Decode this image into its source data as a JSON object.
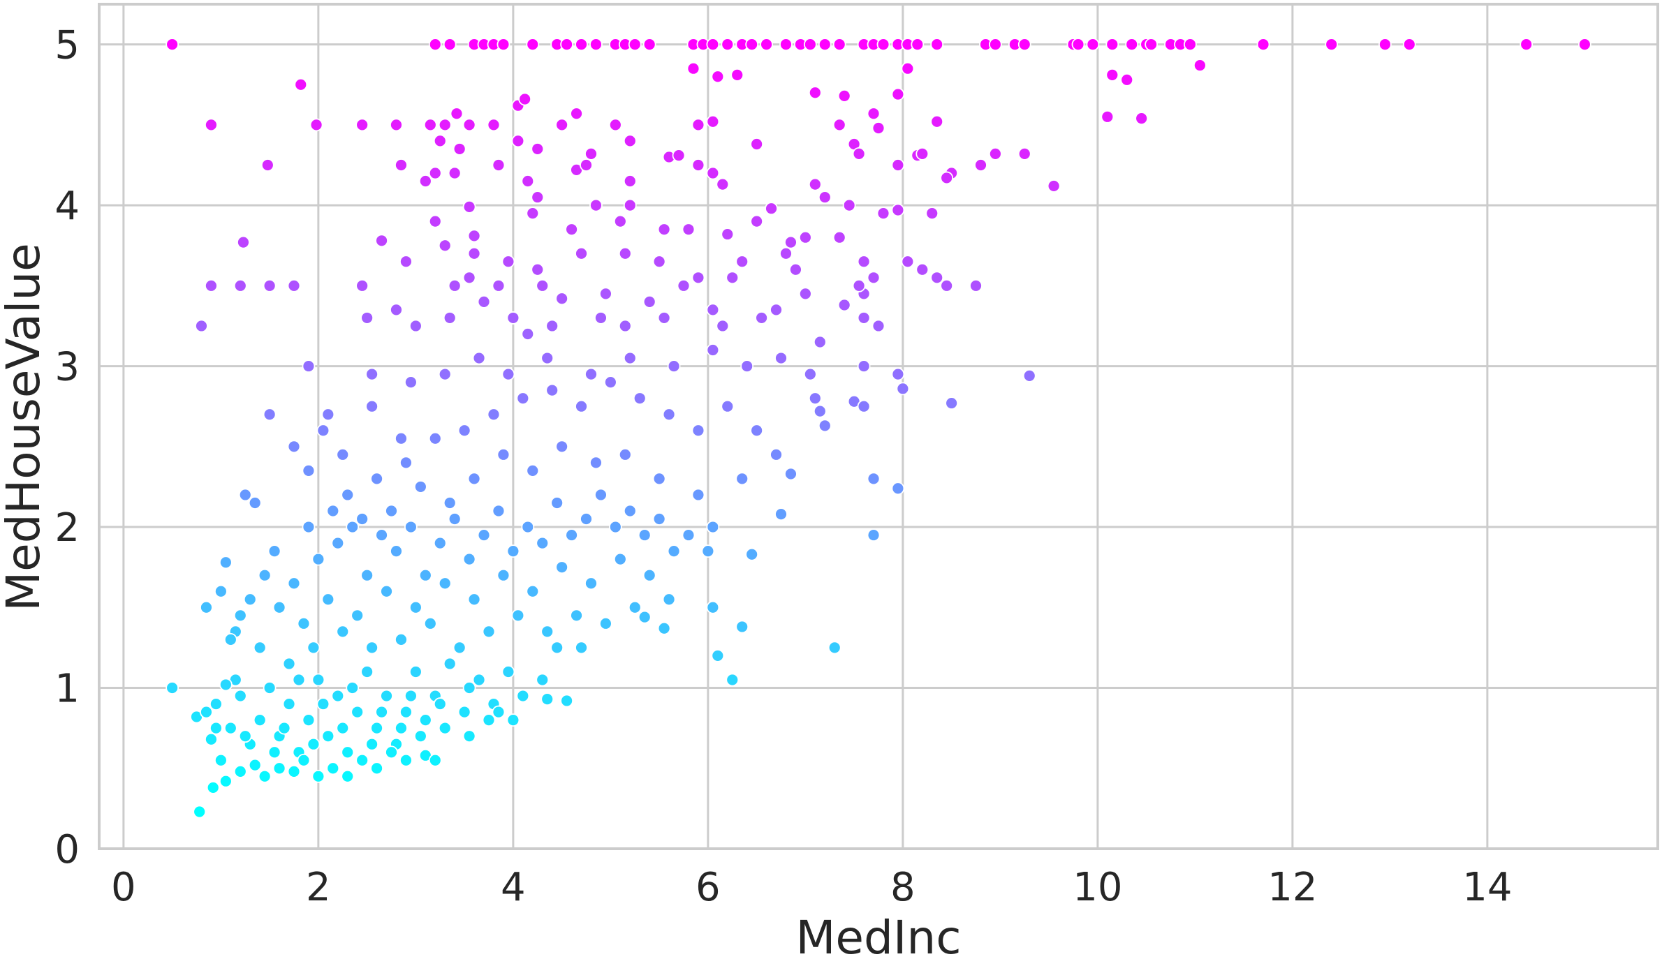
{
  "chart_data": {
    "type": "scatter",
    "title": "",
    "xlabel": "MedInc",
    "ylabel": "MedHouseValue",
    "xlim": [
      -0.25,
      15.75
    ],
    "ylim": [
      0,
      5.25
    ],
    "x_ticks": [
      0,
      2,
      4,
      6,
      8,
      10,
      12,
      14
    ],
    "y_ticks": [
      0,
      1,
      2,
      3,
      4,
      5
    ],
    "grid": true,
    "colormap": {
      "name": "cool",
      "min_color": "#00ffff",
      "max_color": "#ff00ff",
      "mapped_to": "y",
      "vmin": 0.3,
      "vmax": 5.0
    },
    "style": {
      "grid_color": "#cccccc",
      "axis_color": "#cccccc",
      "text_color": "#262626",
      "point_edge_color": "#ffffff"
    },
    "points": [
      [
        0.5,
        5.0
      ],
      [
        3.2,
        5.0
      ],
      [
        3.35,
        5.0
      ],
      [
        3.6,
        5.0
      ],
      [
        3.7,
        5.0
      ],
      [
        3.8,
        5.0
      ],
      [
        3.9,
        5.0
      ],
      [
        4.2,
        5.0
      ],
      [
        4.45,
        5.0
      ],
      [
        4.55,
        5.0
      ],
      [
        4.7,
        5.0
      ],
      [
        4.85,
        5.0
      ],
      [
        5.05,
        5.0
      ],
      [
        5.15,
        5.0
      ],
      [
        5.25,
        5.0
      ],
      [
        5.4,
        5.0
      ],
      [
        5.85,
        5.0
      ],
      [
        5.95,
        5.0
      ],
      [
        6.05,
        5.0
      ],
      [
        6.2,
        5.0
      ],
      [
        6.35,
        5.0
      ],
      [
        6.45,
        5.0
      ],
      [
        6.6,
        5.0
      ],
      [
        6.8,
        5.0
      ],
      [
        6.95,
        5.0
      ],
      [
        7.05,
        5.0
      ],
      [
        7.2,
        5.0
      ],
      [
        7.35,
        5.0
      ],
      [
        7.6,
        5.0
      ],
      [
        7.7,
        5.0
      ],
      [
        7.8,
        5.0
      ],
      [
        7.95,
        5.0
      ],
      [
        8.05,
        5.0
      ],
      [
        8.15,
        5.0
      ],
      [
        8.35,
        5.0
      ],
      [
        8.85,
        5.0
      ],
      [
        8.95,
        5.0
      ],
      [
        9.15,
        5.0
      ],
      [
        9.25,
        5.0
      ],
      [
        9.75,
        5.0
      ],
      [
        9.8,
        5.0
      ],
      [
        9.95,
        5.0
      ],
      [
        10.15,
        5.0
      ],
      [
        10.35,
        5.0
      ],
      [
        10.5,
        5.0
      ],
      [
        10.55,
        5.0
      ],
      [
        10.75,
        5.0
      ],
      [
        10.85,
        5.0
      ],
      [
        10.95,
        5.0
      ],
      [
        11.7,
        5.0
      ],
      [
        12.4,
        5.0
      ],
      [
        12.95,
        5.0
      ],
      [
        13.2,
        5.0
      ],
      [
        14.4,
        5.0
      ],
      [
        15.0,
        5.0
      ],
      [
        1.82,
        4.75
      ],
      [
        5.85,
        4.85
      ],
      [
        6.1,
        4.8
      ],
      [
        6.3,
        4.81
      ],
      [
        8.05,
        4.85
      ],
      [
        10.15,
        4.81
      ],
      [
        10.3,
        4.78
      ],
      [
        11.05,
        4.87
      ],
      [
        7.1,
        4.7
      ],
      [
        7.4,
        4.68
      ],
      [
        7.95,
        4.69
      ],
      [
        4.05,
        4.62
      ],
      [
        4.12,
        4.66
      ],
      [
        3.42,
        4.57
      ],
      [
        4.65,
        4.57
      ],
      [
        7.7,
        4.57
      ],
      [
        6.05,
        4.52
      ],
      [
        10.1,
        4.55
      ],
      [
        10.45,
        4.54
      ],
      [
        0.9,
        4.5
      ],
      [
        1.98,
        4.5
      ],
      [
        2.45,
        4.5
      ],
      [
        2.8,
        4.5
      ],
      [
        3.15,
        4.5
      ],
      [
        3.3,
        4.5
      ],
      [
        3.55,
        4.5
      ],
      [
        3.8,
        4.5
      ],
      [
        4.5,
        4.5
      ],
      [
        5.05,
        4.5
      ],
      [
        5.9,
        4.5
      ],
      [
        7.35,
        4.5
      ],
      [
        7.75,
        4.48
      ],
      [
        8.35,
        4.52
      ],
      [
        8.15,
        4.31
      ],
      [
        8.2,
        4.32
      ],
      [
        1.48,
        4.25
      ],
      [
        2.85,
        4.25
      ],
      [
        3.25,
        4.4
      ],
      [
        3.45,
        4.35
      ],
      [
        3.85,
        4.25
      ],
      [
        4.05,
        4.4
      ],
      [
        4.25,
        4.35
      ],
      [
        4.65,
        4.22
      ],
      [
        4.8,
        4.32
      ],
      [
        5.2,
        4.4
      ],
      [
        5.6,
        4.3
      ],
      [
        5.7,
        4.31
      ],
      [
        5.9,
        4.25
      ],
      [
        6.05,
        4.2
      ],
      [
        6.15,
        4.13
      ],
      [
        6.5,
        4.38
      ],
      [
        7.1,
        4.13
      ],
      [
        7.5,
        4.38
      ],
      [
        7.55,
        4.32
      ],
      [
        7.95,
        4.25
      ],
      [
        8.5,
        4.2
      ],
      [
        8.8,
        4.25
      ],
      [
        8.95,
        4.32
      ],
      [
        9.25,
        4.32
      ],
      [
        9.55,
        4.12
      ],
      [
        3.1,
        4.15
      ],
      [
        3.2,
        4.2
      ],
      [
        3.4,
        4.2
      ],
      [
        4.25,
        4.05
      ],
      [
        4.75,
        4.25
      ],
      [
        5.2,
        4.15
      ],
      [
        7.2,
        4.05
      ],
      [
        8.45,
        4.17
      ],
      [
        4.15,
        4.15
      ],
      [
        5.2,
        4.0
      ],
      [
        4.85,
        4.0
      ],
      [
        3.55,
        3.99
      ],
      [
        6.65,
        3.98
      ],
      [
        7.45,
        4.0
      ],
      [
        7.95,
        3.97
      ],
      [
        7.8,
        3.95
      ],
      [
        8.3,
        3.95
      ],
      [
        4.2,
        3.95
      ],
      [
        5.1,
        3.9
      ],
      [
        5.55,
        3.85
      ],
      [
        5.8,
        3.85
      ],
      [
        6.2,
        3.82
      ],
      [
        6.5,
        3.9
      ],
      [
        7.0,
        3.8
      ],
      [
        7.35,
        3.8
      ],
      [
        3.2,
        3.9
      ],
      [
        3.6,
        3.81
      ],
      [
        4.6,
        3.85
      ],
      [
        1.23,
        3.77
      ],
      [
        2.65,
        3.78
      ],
      [
        6.85,
        3.77
      ],
      [
        0.8,
        3.25
      ],
      [
        0.9,
        3.5
      ],
      [
        1.2,
        3.5
      ],
      [
        1.5,
        3.5
      ],
      [
        1.75,
        3.5
      ],
      [
        2.45,
        3.5
      ],
      [
        3.4,
        3.5
      ],
      [
        3.55,
        3.55
      ],
      [
        3.85,
        3.5
      ],
      [
        4.3,
        3.5
      ],
      [
        4.5,
        3.42
      ],
      [
        4.95,
        3.45
      ],
      [
        5.4,
        3.4
      ],
      [
        5.75,
        3.5
      ],
      [
        6.25,
        3.55
      ],
      [
        6.7,
        3.35
      ],
      [
        7.0,
        3.45
      ],
      [
        7.4,
        3.38
      ],
      [
        7.6,
        3.45
      ],
      [
        8.05,
        3.65
      ],
      [
        8.2,
        3.6
      ],
      [
        8.35,
        3.55
      ],
      [
        8.45,
        3.5
      ],
      [
        8.75,
        3.5
      ],
      [
        2.5,
        3.3
      ],
      [
        2.8,
        3.35
      ],
      [
        3.0,
        3.25
      ],
      [
        3.35,
        3.3
      ],
      [
        3.7,
        3.4
      ],
      [
        4.0,
        3.3
      ],
      [
        4.15,
        3.2
      ],
      [
        4.4,
        3.25
      ],
      [
        4.9,
        3.3
      ],
      [
        5.15,
        3.25
      ],
      [
        5.55,
        3.3
      ],
      [
        6.15,
        3.25
      ],
      [
        6.55,
        3.3
      ],
      [
        7.15,
        3.15
      ],
      [
        7.6,
        3.3
      ],
      [
        7.75,
        3.25
      ],
      [
        3.6,
        3.7
      ],
      [
        3.95,
        3.65
      ],
      [
        4.25,
        3.6
      ],
      [
        4.7,
        3.7
      ],
      [
        5.15,
        3.7
      ],
      [
        5.5,
        3.65
      ],
      [
        6.35,
        3.65
      ],
      [
        6.8,
        3.7
      ],
      [
        7.6,
        3.65
      ],
      [
        7.7,
        3.55
      ],
      [
        2.9,
        3.65
      ],
      [
        3.3,
        3.75
      ],
      [
        5.9,
        3.55
      ],
      [
        6.05,
        3.35
      ],
      [
        6.9,
        3.6
      ],
      [
        7.55,
        3.5
      ],
      [
        1.9,
        3.0
      ],
      [
        2.55,
        2.95
      ],
      [
        2.95,
        2.9
      ],
      [
        3.3,
        2.95
      ],
      [
        3.65,
        3.05
      ],
      [
        3.95,
        2.95
      ],
      [
        4.35,
        3.05
      ],
      [
        4.8,
        2.95
      ],
      [
        5.2,
        3.05
      ],
      [
        5.65,
        3.0
      ],
      [
        6.05,
        3.1
      ],
      [
        6.4,
        3.0
      ],
      [
        6.75,
        3.05
      ],
      [
        7.05,
        2.95
      ],
      [
        7.6,
        3.0
      ],
      [
        7.95,
        2.95
      ],
      [
        9.3,
        2.94
      ],
      [
        8.0,
        2.86
      ],
      [
        8.5,
        2.77
      ],
      [
        7.1,
        2.8
      ],
      [
        7.15,
        2.72
      ],
      [
        7.2,
        2.63
      ],
      [
        7.5,
        2.78
      ],
      [
        7.6,
        2.75
      ],
      [
        6.85,
        2.33
      ],
      [
        7.7,
        2.3
      ],
      [
        7.95,
        2.24
      ],
      [
        7.7,
        1.95
      ],
      [
        7.3,
        1.25
      ],
      [
        6.45,
        1.83
      ],
      [
        6.25,
        1.05
      ],
      [
        6.35,
        1.38
      ],
      [
        6.05,
        1.5
      ],
      [
        6.1,
        1.2
      ],
      [
        6.75,
        2.08
      ],
      [
        2.3,
        2.2
      ],
      [
        2.6,
        2.3
      ],
      [
        2.9,
        2.4
      ],
      [
        3.2,
        2.55
      ],
      [
        3.5,
        2.6
      ],
      [
        3.8,
        2.7
      ],
      [
        4.1,
        2.8
      ],
      [
        4.4,
        2.85
      ],
      [
        4.7,
        2.75
      ],
      [
        5.0,
        2.9
      ],
      [
        5.3,
        2.8
      ],
      [
        5.6,
        2.7
      ],
      [
        5.9,
        2.6
      ],
      [
        6.2,
        2.75
      ],
      [
        6.5,
        2.6
      ],
      [
        6.7,
        2.45
      ],
      [
        6.35,
        2.3
      ],
      [
        5.9,
        2.2
      ],
      [
        5.5,
        2.3
      ],
      [
        5.15,
        2.45
      ],
      [
        4.85,
        2.4
      ],
      [
        4.5,
        2.5
      ],
      [
        4.2,
        2.35
      ],
      [
        3.9,
        2.45
      ],
      [
        3.6,
        2.3
      ],
      [
        3.35,
        2.15
      ],
      [
        3.05,
        2.25
      ],
      [
        2.75,
        2.1
      ],
      [
        2.45,
        2.05
      ],
      [
        2.15,
        2.1
      ],
      [
        1.25,
        2.2
      ],
      [
        1.35,
        2.15
      ],
      [
        1.5,
        2.7
      ],
      [
        1.75,
        2.5
      ],
      [
        2.05,
        2.6
      ],
      [
        2.25,
        2.45
      ],
      [
        2.55,
        2.75
      ],
      [
        2.85,
        2.55
      ],
      [
        1.9,
        2.35
      ],
      [
        2.1,
        2.7
      ],
      [
        1.0,
        1.6
      ],
      [
        1.05,
        1.78
      ],
      [
        1.15,
        1.35
      ],
      [
        1.2,
        1.45
      ],
      [
        1.3,
        1.55
      ],
      [
        1.45,
        1.7
      ],
      [
        1.55,
        1.85
      ],
      [
        1.75,
        1.65
      ],
      [
        1.9,
        2.0
      ],
      [
        2.0,
        1.8
      ],
      [
        2.2,
        1.9
      ],
      [
        2.35,
        2.0
      ],
      [
        2.5,
        1.7
      ],
      [
        2.65,
        1.95
      ],
      [
        2.8,
        1.85
      ],
      [
        2.95,
        2.0
      ],
      [
        3.1,
        1.7
      ],
      [
        3.25,
        1.9
      ],
      [
        3.4,
        2.05
      ],
      [
        3.55,
        1.8
      ],
      [
        3.7,
        1.95
      ],
      [
        3.85,
        2.1
      ],
      [
        4.0,
        1.85
      ],
      [
        4.15,
        2.0
      ],
      [
        4.3,
        1.9
      ],
      [
        4.45,
        2.15
      ],
      [
        4.6,
        1.95
      ],
      [
        4.75,
        2.05
      ],
      [
        4.9,
        2.2
      ],
      [
        5.05,
        2.0
      ],
      [
        5.2,
        2.1
      ],
      [
        5.35,
        1.95
      ],
      [
        5.5,
        2.05
      ],
      [
        5.65,
        1.85
      ],
      [
        5.8,
        1.95
      ],
      [
        6.0,
        1.85
      ],
      [
        6.05,
        2.0
      ],
      [
        1.6,
        1.5
      ],
      [
        1.85,
        1.4
      ],
      [
        2.1,
        1.55
      ],
      [
        2.4,
        1.45
      ],
      [
        2.7,
        1.6
      ],
      [
        3.0,
        1.5
      ],
      [
        3.3,
        1.65
      ],
      [
        3.6,
        1.55
      ],
      [
        3.9,
        1.7
      ],
      [
        4.2,
        1.6
      ],
      [
        4.5,
        1.75
      ],
      [
        4.8,
        1.65
      ],
      [
        5.1,
        1.8
      ],
      [
        5.4,
        1.7
      ],
      [
        5.6,
        1.55
      ],
      [
        5.25,
        1.5
      ],
      [
        4.95,
        1.4
      ],
      [
        4.65,
        1.45
      ],
      [
        4.35,
        1.35
      ],
      [
        4.05,
        1.45
      ],
      [
        3.75,
        1.35
      ],
      [
        3.45,
        1.25
      ],
      [
        3.15,
        1.4
      ],
      [
        2.85,
        1.3
      ],
      [
        2.55,
        1.25
      ],
      [
        2.25,
        1.35
      ],
      [
        1.95,
        1.25
      ],
      [
        1.7,
        1.15
      ],
      [
        1.4,
        1.25
      ],
      [
        1.15,
        1.05
      ],
      [
        0.85,
        1.5
      ],
      [
        1.1,
        1.3
      ],
      [
        5.55,
        1.37
      ],
      [
        5.35,
        1.44
      ],
      [
        4.45,
        1.25
      ],
      [
        4.7,
        1.25
      ],
      [
        0.5,
        1.0
      ],
      [
        0.75,
        0.82
      ],
      [
        0.85,
        0.85
      ],
      [
        0.9,
        0.68
      ],
      [
        0.95,
        0.9
      ],
      [
        1.05,
        1.02
      ],
      [
        1.1,
        0.75
      ],
      [
        1.2,
        0.95
      ],
      [
        1.3,
        0.65
      ],
      [
        1.4,
        0.8
      ],
      [
        1.5,
        1.0
      ],
      [
        1.6,
        0.7
      ],
      [
        1.7,
        0.9
      ],
      [
        1.8,
        0.6
      ],
      [
        1.9,
        0.8
      ],
      [
        2.0,
        1.05
      ],
      [
        2.1,
        0.7
      ],
      [
        2.2,
        0.95
      ],
      [
        2.3,
        0.6
      ],
      [
        2.4,
        0.85
      ],
      [
        2.5,
        1.1
      ],
      [
        2.6,
        0.75
      ],
      [
        2.7,
        0.95
      ],
      [
        2.8,
        0.65
      ],
      [
        2.9,
        0.85
      ],
      [
        3.0,
        1.1
      ],
      [
        3.1,
        0.8
      ],
      [
        3.2,
        0.95
      ],
      [
        3.35,
        1.15
      ],
      [
        3.5,
        0.85
      ],
      [
        3.65,
        1.05
      ],
      [
        3.8,
        0.9
      ],
      [
        3.95,
        1.1
      ],
      [
        4.1,
        0.95
      ],
      [
        4.3,
        1.05
      ],
      [
        4.55,
        0.92
      ],
      [
        4.35,
        0.93
      ],
      [
        0.78,
        0.23
      ],
      [
        0.92,
        0.38
      ],
      [
        1.05,
        0.42
      ],
      [
        1.2,
        0.48
      ],
      [
        1.35,
        0.52
      ],
      [
        1.45,
        0.45
      ],
      [
        1.6,
        0.5
      ],
      [
        1.75,
        0.48
      ],
      [
        1.85,
        0.55
      ],
      [
        2.0,
        0.45
      ],
      [
        2.15,
        0.5
      ],
      [
        2.3,
        0.45
      ],
      [
        2.45,
        0.55
      ],
      [
        2.6,
        0.5
      ],
      [
        2.75,
        0.6
      ],
      [
        2.9,
        0.55
      ],
      [
        3.1,
        0.58
      ],
      [
        3.2,
        0.55
      ],
      [
        1.0,
        0.55
      ],
      [
        0.95,
        0.75
      ],
      [
        1.25,
        0.7
      ],
      [
        1.55,
        0.6
      ],
      [
        1.65,
        0.75
      ],
      [
        1.95,
        0.65
      ],
      [
        2.25,
        0.75
      ],
      [
        2.55,
        0.65
      ],
      [
        2.85,
        0.75
      ],
      [
        3.05,
        0.7
      ],
      [
        3.3,
        0.75
      ],
      [
        3.55,
        0.7
      ],
      [
        3.75,
        0.8
      ],
      [
        4.0,
        0.8
      ],
      [
        1.8,
        1.05
      ],
      [
        2.05,
        0.9
      ],
      [
        2.35,
        1.0
      ],
      [
        2.65,
        0.85
      ],
      [
        2.95,
        0.95
      ],
      [
        3.25,
        0.9
      ],
      [
        3.55,
        1.0
      ],
      [
        3.85,
        0.85
      ]
    ]
  }
}
